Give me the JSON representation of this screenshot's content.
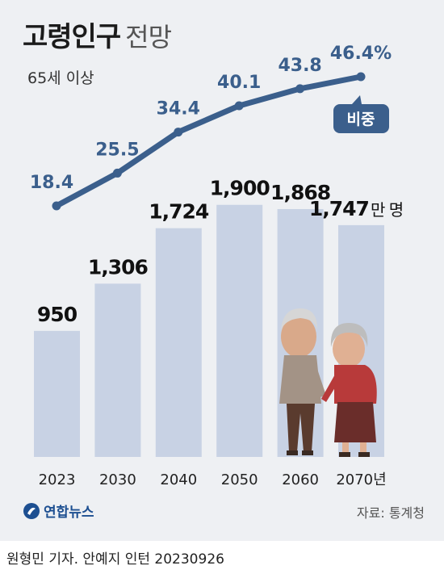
{
  "title": "고령인구",
  "title_sub": "전망",
  "subtitle": "65세 이상",
  "source": "자료: 통계청",
  "logo": "연합뉴스",
  "credit": "원형민 기자. 안예지 인턴  20230926",
  "colors": {
    "bar": "#c8d2e4",
    "line": "#3b5f8c",
    "badge": "#3b5f8c",
    "background": "#eef0f3"
  },
  "chart_data": {
    "type": "bar",
    "categories": [
      "2023",
      "2030",
      "2040",
      "2050",
      "2060",
      "2070년"
    ],
    "values": [
      950,
      1306,
      1724,
      1900,
      1868,
      1747
    ],
    "value_labels": [
      "950",
      "1,306",
      "1,724",
      "1,900",
      "1,868",
      "1,747"
    ],
    "value_unit": "만 명",
    "ratio_series": {
      "name": "비중",
      "values": [
        18.4,
        25.5,
        34.4,
        40.1,
        43.8,
        46.4
      ],
      "labels": [
        "18.4",
        "25.5",
        "34.4",
        "40.1",
        "43.8",
        "46.4%"
      ]
    },
    "ylim": [
      0,
      2000
    ],
    "grid": false,
    "legend": ""
  }
}
